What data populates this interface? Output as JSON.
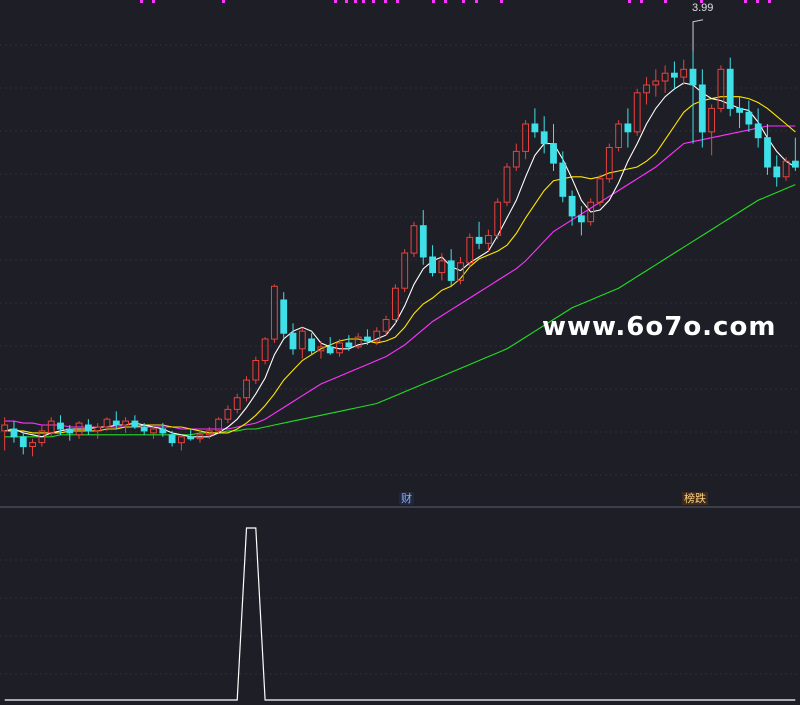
{
  "watermark": "www.6o7o.com",
  "high_marker": {
    "label": "3.99"
  },
  "event_tags": [
    {
      "label": "财"
    },
    {
      "label": "榜跌"
    }
  ],
  "colors": {
    "background": "#1e1f26",
    "grid": "#2c2e38",
    "candle_up": "#e8423e",
    "candle_down": "#3fe0e8",
    "ma5": "#ffffff",
    "ma10": "#ffe600",
    "ma20": "#ff33ff",
    "ma60": "#22dd22",
    "signal": "#ffffff",
    "top_marks": "#ff33ff"
  },
  "chart_data": [
    {
      "type": "candlestick",
      "title": "",
      "price_markers": [
        "3.99"
      ],
      "candles": [
        [
          2.05,
          2.12,
          1.95,
          2.08
        ],
        [
          2.06,
          2.1,
          1.99,
          2.02
        ],
        [
          2.02,
          2.05,
          1.93,
          1.97
        ],
        [
          1.97,
          2.01,
          1.92,
          1.99
        ],
        [
          1.99,
          2.08,
          1.97,
          2.05
        ],
        [
          2.04,
          2.12,
          2.02,
          2.1
        ],
        [
          2.09,
          2.13,
          2.03,
          2.06
        ],
        [
          2.06,
          2.08,
          2.0,
          2.04
        ],
        [
          2.03,
          2.1,
          2.01,
          2.09
        ],
        [
          2.08,
          2.11,
          2.03,
          2.05
        ],
        [
          2.05,
          2.09,
          2.01,
          2.07
        ],
        [
          2.07,
          2.12,
          2.05,
          2.11
        ],
        [
          2.1,
          2.15,
          2.06,
          2.08
        ],
        [
          2.08,
          2.12,
          2.04,
          2.1
        ],
        [
          2.1,
          2.13,
          2.06,
          2.07
        ],
        [
          2.07,
          2.09,
          2.03,
          2.05
        ],
        [
          2.04,
          2.08,
          2.01,
          2.06
        ],
        [
          2.06,
          2.09,
          2.02,
          2.04
        ],
        [
          2.03,
          2.05,
          1.97,
          1.99
        ],
        [
          1.99,
          2.03,
          1.95,
          2.02
        ],
        [
          2.02,
          2.06,
          2.0,
          2.01
        ],
        [
          2.01,
          2.05,
          1.99,
          2.03
        ],
        [
          2.03,
          2.07,
          2.01,
          2.05
        ],
        [
          2.05,
          2.12,
          2.04,
          2.11
        ],
        [
          2.11,
          2.18,
          2.09,
          2.16
        ],
        [
          2.16,
          2.24,
          2.14,
          2.22
        ],
        [
          2.22,
          2.33,
          2.2,
          2.31
        ],
        [
          2.31,
          2.43,
          2.29,
          2.41
        ],
        [
          2.41,
          2.53,
          2.39,
          2.52
        ],
        [
          2.52,
          2.8,
          2.5,
          2.79
        ],
        [
          2.72,
          2.76,
          2.52,
          2.55
        ],
        [
          2.55,
          2.6,
          2.44,
          2.47
        ],
        [
          2.47,
          2.58,
          2.42,
          2.56
        ],
        [
          2.52,
          2.55,
          2.44,
          2.46
        ],
        [
          2.46,
          2.51,
          2.42,
          2.48
        ],
        [
          2.48,
          2.53,
          2.44,
          2.45
        ],
        [
          2.45,
          2.52,
          2.43,
          2.5
        ],
        [
          2.5,
          2.54,
          2.46,
          2.48
        ],
        [
          2.48,
          2.55,
          2.47,
          2.53
        ],
        [
          2.53,
          2.57,
          2.49,
          2.51
        ],
        [
          2.51,
          2.58,
          2.49,
          2.56
        ],
        [
          2.56,
          2.64,
          2.54,
          2.62
        ],
        [
          2.62,
          2.8,
          2.6,
          2.78
        ],
        [
          2.78,
          2.98,
          2.76,
          2.96
        ],
        [
          2.96,
          3.12,
          2.94,
          3.1
        ],
        [
          3.1,
          3.18,
          2.9,
          2.94
        ],
        [
          2.94,
          3.0,
          2.84,
          2.86
        ],
        [
          2.86,
          2.96,
          2.82,
          2.92
        ],
        [
          2.92,
          2.98,
          2.79,
          2.82
        ],
        [
          2.82,
          2.94,
          2.8,
          2.91
        ],
        [
          2.91,
          3.06,
          2.89,
          3.04
        ],
        [
          3.04,
          3.12,
          2.98,
          3.01
        ],
        [
          3.01,
          3.08,
          2.97,
          3.05
        ],
        [
          3.05,
          3.24,
          3.03,
          3.22
        ],
        [
          3.22,
          3.42,
          3.2,
          3.4
        ],
        [
          3.4,
          3.52,
          3.38,
          3.48
        ],
        [
          3.48,
          3.64,
          3.44,
          3.62
        ],
        [
          3.62,
          3.7,
          3.55,
          3.58
        ],
        [
          3.58,
          3.66,
          3.47,
          3.52
        ],
        [
          3.52,
          3.62,
          3.38,
          3.42
        ],
        [
          3.42,
          3.48,
          3.22,
          3.25
        ],
        [
          3.25,
          3.28,
          3.1,
          3.15
        ],
        [
          3.15,
          3.2,
          3.05,
          3.12
        ],
        [
          3.12,
          3.24,
          3.1,
          3.22
        ],
        [
          3.22,
          3.36,
          3.2,
          3.34
        ],
        [
          3.34,
          3.52,
          3.32,
          3.5
        ],
        [
          3.5,
          3.64,
          3.48,
          3.62
        ],
        [
          3.62,
          3.7,
          3.5,
          3.58
        ],
        [
          3.58,
          3.8,
          3.56,
          3.78
        ],
        [
          3.78,
          3.86,
          3.72,
          3.82
        ],
        [
          3.82,
          3.9,
          3.76,
          3.84
        ],
        [
          3.84,
          3.92,
          3.78,
          3.88
        ],
        [
          3.88,
          3.94,
          3.8,
          3.86
        ],
        [
          3.86,
          3.95,
          3.82,
          3.9
        ],
        [
          3.9,
          3.99,
          3.52,
          3.82
        ],
        [
          3.82,
          3.9,
          3.5,
          3.58
        ],
        [
          3.58,
          3.72,
          3.46,
          3.7
        ],
        [
          3.7,
          3.92,
          3.68,
          3.9
        ],
        [
          3.9,
          3.96,
          3.66,
          3.7
        ],
        [
          3.7,
          3.76,
          3.6,
          3.68
        ],
        [
          3.68,
          3.74,
          3.58,
          3.62
        ],
        [
          3.62,
          3.7,
          3.5,
          3.55
        ],
        [
          3.55,
          3.62,
          3.36,
          3.4
        ],
        [
          3.4,
          3.46,
          3.3,
          3.35
        ],
        [
          3.35,
          3.45,
          3.33,
          3.43
        ],
        [
          3.43,
          3.55,
          3.38,
          3.4
        ]
      ],
      "ma5": [
        2.05,
        2.06,
        2.04,
        2.03,
        2.02,
        2.04,
        2.05,
        2.06,
        2.06,
        2.06,
        2.07,
        2.07,
        2.08,
        2.08,
        2.09,
        2.08,
        2.07,
        2.06,
        2.04,
        2.03,
        2.02,
        2.02,
        2.02,
        2.04,
        2.07,
        2.11,
        2.17,
        2.24,
        2.32,
        2.44,
        2.52,
        2.56,
        2.58,
        2.56,
        2.5,
        2.48,
        2.47,
        2.47,
        2.49,
        2.5,
        2.52,
        2.54,
        2.6,
        2.69,
        2.8,
        2.88,
        2.92,
        2.94,
        2.89,
        2.87,
        2.91,
        2.94,
        2.97,
        3.05,
        3.14,
        3.23,
        3.35,
        3.46,
        3.52,
        3.52,
        3.44,
        3.34,
        3.23,
        3.17,
        3.18,
        3.23,
        3.32,
        3.43,
        3.52,
        3.62,
        3.7,
        3.76,
        3.8,
        3.83,
        3.82,
        3.78,
        3.75,
        3.74,
        3.72,
        3.7,
        3.69,
        3.63,
        3.55,
        3.48,
        3.43,
        3.4
      ],
      "ma10": [
        2.05,
        2.05,
        2.05,
        2.04,
        2.04,
        2.04,
        2.04,
        2.05,
        2.05,
        2.05,
        2.05,
        2.06,
        2.06,
        2.07,
        2.07,
        2.08,
        2.08,
        2.08,
        2.07,
        2.07,
        2.06,
        2.05,
        2.04,
        2.04,
        2.04,
        2.06,
        2.09,
        2.13,
        2.18,
        2.24,
        2.31,
        2.36,
        2.41,
        2.44,
        2.47,
        2.49,
        2.51,
        2.52,
        2.52,
        2.51,
        2.5,
        2.51,
        2.53,
        2.58,
        2.65,
        2.7,
        2.73,
        2.77,
        2.79,
        2.83,
        2.89,
        2.93,
        2.95,
        2.97,
        3.0,
        3.06,
        3.14,
        3.21,
        3.28,
        3.33,
        3.34,
        3.35,
        3.35,
        3.34,
        3.35,
        3.37,
        3.38,
        3.39,
        3.4,
        3.43,
        3.47,
        3.54,
        3.61,
        3.68,
        3.72,
        3.74,
        3.75,
        3.76,
        3.76,
        3.76,
        3.75,
        3.73,
        3.7,
        3.66,
        3.62,
        3.58
      ],
      "ma20": [
        2.1,
        2.1,
        2.09,
        2.09,
        2.08,
        2.08,
        2.08,
        2.07,
        2.07,
        2.07,
        2.07,
        2.07,
        2.07,
        2.07,
        2.07,
        2.07,
        2.07,
        2.07,
        2.07,
        2.06,
        2.06,
        2.06,
        2.06,
        2.06,
        2.06,
        2.07,
        2.08,
        2.09,
        2.11,
        2.14,
        2.17,
        2.2,
        2.23,
        2.26,
        2.29,
        2.31,
        2.33,
        2.35,
        2.37,
        2.39,
        2.41,
        2.43,
        2.46,
        2.49,
        2.53,
        2.57,
        2.61,
        2.64,
        2.67,
        2.7,
        2.73,
        2.76,
        2.79,
        2.82,
        2.85,
        2.88,
        2.92,
        2.97,
        3.02,
        3.07,
        3.1,
        3.13,
        3.16,
        3.19,
        3.22,
        3.25,
        3.28,
        3.31,
        3.34,
        3.37,
        3.4,
        3.44,
        3.48,
        3.52,
        3.53,
        3.54,
        3.55,
        3.56,
        3.57,
        3.58,
        3.59,
        3.6,
        3.61,
        3.61,
        3.61,
        3.61
      ],
      "ma60": [
        2.02,
        2.02,
        2.02,
        2.02,
        2.02,
        2.02,
        2.03,
        2.03,
        2.03,
        2.03,
        2.03,
        2.03,
        2.03,
        2.03,
        2.03,
        2.03,
        2.03,
        2.03,
        2.03,
        2.03,
        2.03,
        2.04,
        2.04,
        2.04,
        2.05,
        2.05,
        2.06,
        2.06,
        2.07,
        2.08,
        2.09,
        2.1,
        2.11,
        2.12,
        2.13,
        2.14,
        2.15,
        2.16,
        2.17,
        2.18,
        2.19,
        2.21,
        2.23,
        2.25,
        2.27,
        2.29,
        2.31,
        2.33,
        2.35,
        2.37,
        2.39,
        2.41,
        2.43,
        2.45,
        2.47,
        2.5,
        2.53,
        2.56,
        2.59,
        2.62,
        2.65,
        2.68,
        2.7,
        2.72,
        2.74,
        2.76,
        2.78,
        2.81,
        2.84,
        2.87,
        2.9,
        2.93,
        2.96,
        2.99,
        3.02,
        3.05,
        3.08,
        3.11,
        3.14,
        3.17,
        3.2,
        3.23,
        3.25,
        3.27,
        3.29,
        3.31
      ]
    },
    {
      "type": "line",
      "title": "",
      "series": [
        {
          "values": [
            0,
            0,
            0,
            0,
            0,
            0,
            0,
            0,
            0,
            0,
            0,
            0,
            0,
            0,
            0,
            0,
            0,
            0,
            0,
            0,
            0,
            0,
            0,
            0,
            0,
            0,
            1,
            1,
            0,
            0,
            0,
            0,
            0,
            0,
            0,
            0,
            0,
            0,
            0,
            0,
            0,
            0,
            0,
            0,
            0,
            0,
            0,
            0,
            0,
            0,
            0,
            0,
            0,
            0,
            0,
            0,
            0,
            0,
            0,
            0,
            0,
            0,
            0,
            0,
            0,
            0,
            0,
            0,
            0,
            0,
            0,
            0,
            0,
            0,
            0,
            0,
            0,
            0,
            0,
            0,
            0,
            0,
            0,
            0,
            0,
            0
          ]
        }
      ]
    }
  ]
}
